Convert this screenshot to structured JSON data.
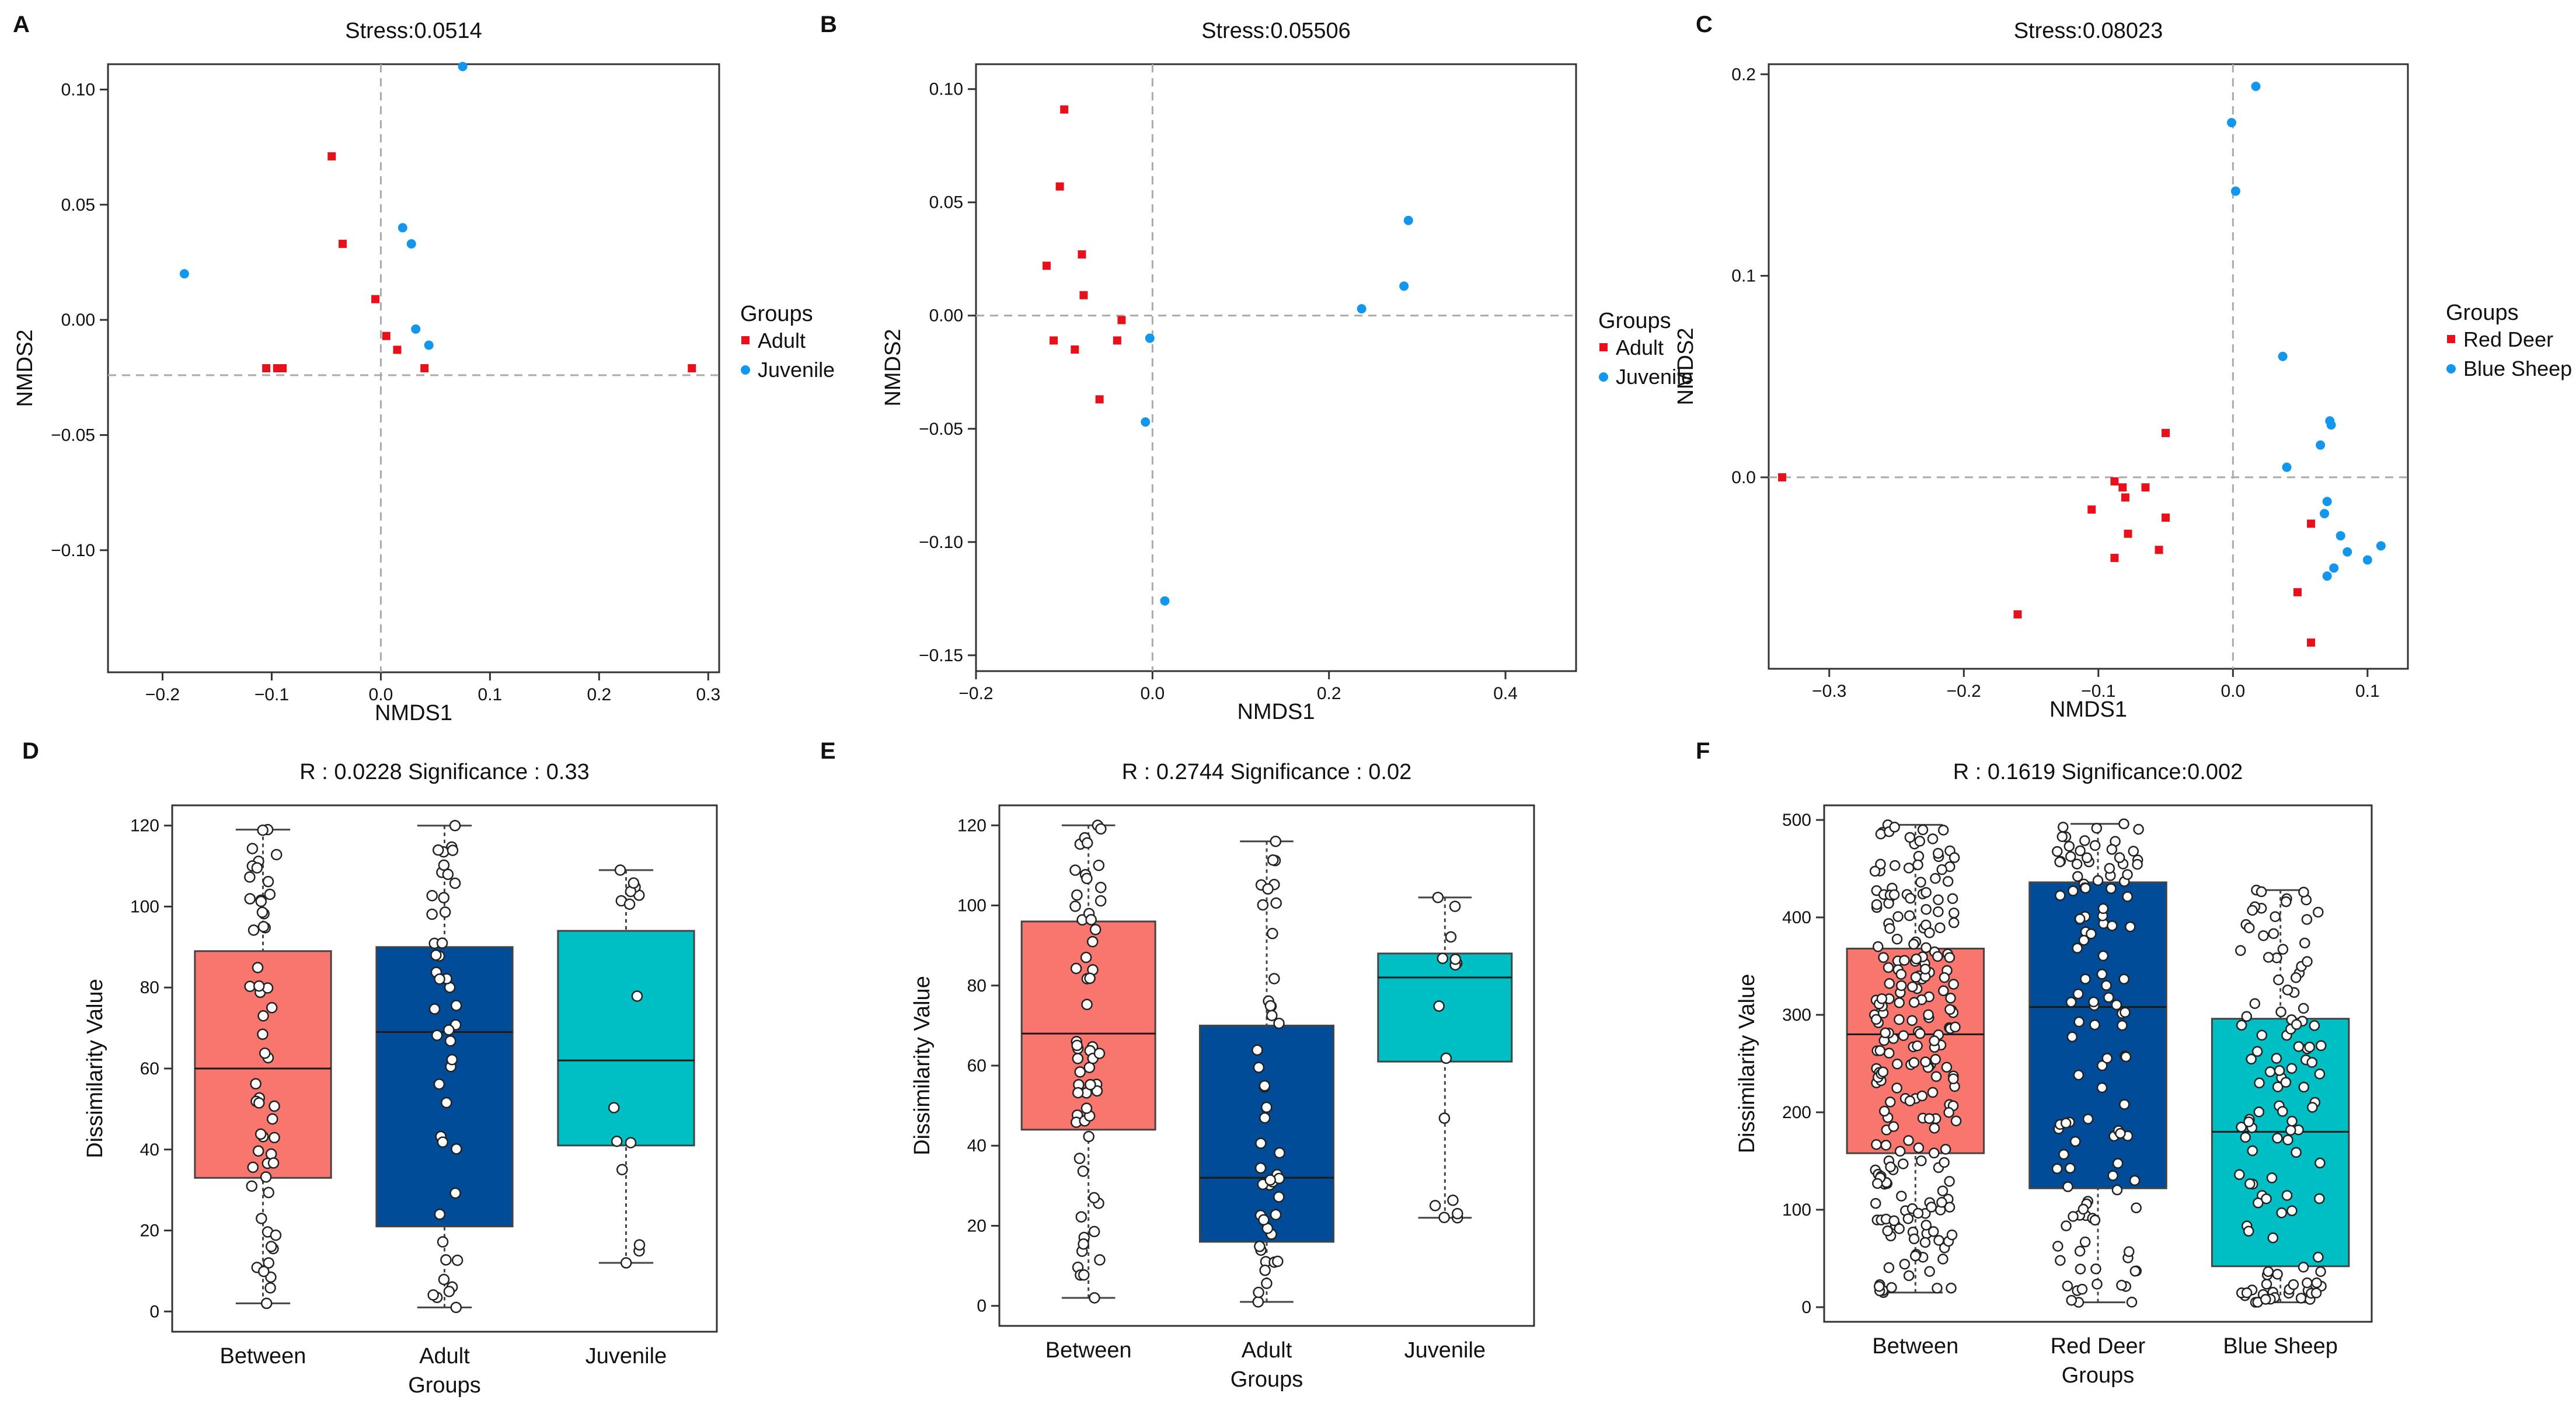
{
  "colors": {
    "red_point": "#e8101a",
    "blue_point": "#1296ee",
    "box_between": "#f8766d",
    "box_group2": "#004c99",
    "box_group3": "#00bfc4"
  },
  "chart_data": [
    {
      "panel": "A",
      "type": "scatter",
      "title": "Stress:0.0514",
      "xlabel": "NMDS1",
      "ylabel": "NMDS2",
      "xlim": [
        -0.25,
        0.31
      ],
      "ylim": [
        -0.153,
        0.111
      ],
      "xticks": [
        -0.2,
        -0.1,
        0.0,
        0.1,
        0.2,
        0.3
      ],
      "xtick_labels": [
        "−0.2",
        "−0.1",
        "0.0",
        "0.1",
        "0.2",
        "0.3"
      ],
      "yticks": [
        -0.1,
        -0.05,
        0.0,
        0.05,
        0.1
      ],
      "ytick_labels": [
        "−0.10",
        "−0.05",
        "0.00",
        "0.05",
        "0.10"
      ],
      "ref_x": 0.0,
      "ref_y": -0.024,
      "legend_title": "Groups",
      "series": [
        {
          "name": "Adult",
          "shape": "square",
          "color": "#e8101a",
          "x": [
            -0.105,
            -0.095,
            -0.09,
            -0.045,
            -0.035,
            -0.005,
            0.005,
            0.015,
            0.04,
            0.285
          ],
          "y": [
            -0.021,
            -0.021,
            -0.021,
            0.071,
            0.033,
            0.009,
            -0.007,
            -0.013,
            -0.021,
            -0.021
          ]
        },
        {
          "name": "Juvenile",
          "shape": "circle",
          "color": "#1296ee",
          "x": [
            -0.18,
            0.075,
            0.02,
            0.028,
            0.032,
            0.044
          ],
          "y": [
            0.02,
            0.11,
            0.04,
            0.033,
            -0.004,
            -0.011
          ]
        }
      ]
    },
    {
      "panel": "B",
      "type": "scatter",
      "title": "Stress:0.05506",
      "xlabel": "NMDS1",
      "ylabel": "NMDS2",
      "xlim": [
        -0.2,
        0.48
      ],
      "ylim": [
        -0.157,
        0.111
      ],
      "xticks": [
        -0.2,
        0.0,
        0.2,
        0.4
      ],
      "xtick_labels": [
        "−0.2",
        "0.0",
        "0.2",
        "0.4"
      ],
      "yticks": [
        -0.15,
        -0.1,
        -0.05,
        0.0,
        0.05,
        0.1
      ],
      "ytick_labels": [
        "−0.15",
        "−0.10",
        "−0.05",
        "0.00",
        "0.05",
        "0.10"
      ],
      "ref_x": 0.0,
      "ref_y": 0.0,
      "legend_title": "Groups",
      "series": [
        {
          "name": "Adult",
          "shape": "square",
          "color": "#e8101a",
          "x": [
            -0.1,
            -0.105,
            -0.08,
            -0.12,
            -0.078,
            -0.112,
            -0.088,
            -0.035,
            -0.04,
            -0.06
          ],
          "y": [
            0.091,
            0.057,
            0.027,
            0.022,
            0.009,
            -0.011,
            -0.015,
            -0.002,
            -0.011,
            -0.037
          ]
        },
        {
          "name": "Juvenile",
          "shape": "circle",
          "color": "#1296ee",
          "x": [
            0.29,
            0.285,
            0.237,
            -0.003,
            -0.008,
            0.014
          ],
          "y": [
            0.042,
            0.013,
            0.003,
            -0.01,
            -0.047,
            -0.126
          ]
        }
      ]
    },
    {
      "panel": "C",
      "type": "scatter",
      "title": "Stress:0.08023",
      "xlabel": "NMDS1",
      "ylabel": "NMDS2",
      "xlim": [
        -0.345,
        0.13
      ],
      "ylim": [
        -0.095,
        0.205
      ],
      "xticks": [
        -0.3,
        -0.2,
        -0.1,
        0.0,
        0.1
      ],
      "xtick_labels": [
        "−0.3",
        "−0.2",
        "−0.1",
        "0.0",
        "0.1"
      ],
      "yticks": [
        0.0,
        0.1,
        0.2
      ],
      "ytick_labels": [
        "0.0",
        "0.1",
        "0.2"
      ],
      "ref_x": 0.0,
      "ref_y": 0.0,
      "legend_title": "Groups",
      "series": [
        {
          "name": "Red Deer",
          "shape": "square",
          "color": "#e8101a",
          "x": [
            -0.335,
            -0.16,
            -0.105,
            -0.088,
            -0.088,
            -0.082,
            -0.08,
            -0.078,
            -0.065,
            -0.05,
            -0.05,
            -0.055,
            0.048,
            0.058,
            0.058
          ],
          "y": [
            0.0,
            -0.068,
            -0.016,
            -0.002,
            -0.04,
            -0.005,
            -0.01,
            -0.028,
            -0.005,
            0.022,
            -0.02,
            -0.036,
            -0.057,
            -0.023,
            -0.082
          ]
        },
        {
          "name": "Blue Sheep",
          "shape": "circle",
          "color": "#1296ee",
          "x": [
            0.017,
            -0.001,
            0.002,
            0.037,
            0.072,
            0.073,
            0.065,
            0.04,
            0.07,
            0.068,
            0.08,
            0.11,
            0.1,
            0.075,
            0.085,
            0.07
          ],
          "y": [
            0.194,
            0.176,
            0.142,
            0.06,
            0.028,
            0.026,
            0.016,
            0.005,
            -0.012,
            -0.018,
            -0.029,
            -0.034,
            -0.041,
            -0.045,
            -0.037,
            -0.049
          ]
        }
      ]
    },
    {
      "panel": "D",
      "type": "box",
      "title": "R : 0.0228  Significance : 0.33",
      "xlabel": "Groups",
      "ylabel": "Dissimilarity Value",
      "ylim": [
        -5,
        125
      ],
      "yticks": [
        0,
        20,
        40,
        60,
        80,
        100,
        120
      ],
      "ytick_labels": [
        "0",
        "20",
        "40",
        "60",
        "80",
        "100",
        "120"
      ],
      "categories": [
        "Between",
        "Adult",
        "Juvenile"
      ],
      "boxes": [
        {
          "name": "Between",
          "color": "#f8766d",
          "min": 2,
          "q1": 33,
          "median": 60,
          "q3": 89,
          "max": 119,
          "n": 56
        },
        {
          "name": "Adult",
          "color": "#004c99",
          "min": 1,
          "q1": 21,
          "median": 69,
          "q3": 90,
          "max": 120,
          "n": 45
        },
        {
          "name": "Juvenile",
          "color": "#00bfc4",
          "min": 12,
          "q1": 41,
          "median": 62,
          "q3": 94,
          "max": 109,
          "n": 15
        }
      ]
    },
    {
      "panel": "E",
      "type": "box",
      "title": "R : 0.2744  Significance : 0.02",
      "xlabel": "Groups",
      "ylabel": "Dissimilarity Value",
      "ylim": [
        -5,
        125
      ],
      "yticks": [
        0,
        20,
        40,
        60,
        80,
        100,
        120
      ],
      "ytick_labels": [
        "0",
        "20",
        "40",
        "60",
        "80",
        "100",
        "120"
      ],
      "categories": [
        "Between",
        "Adult",
        "Juvenile"
      ],
      "boxes": [
        {
          "name": "Between",
          "color": "#f8766d",
          "min": 2,
          "q1": 44,
          "median": 68,
          "q3": 96,
          "max": 120,
          "n": 60
        },
        {
          "name": "Adult",
          "color": "#004c99",
          "min": 1,
          "q1": 16,
          "median": 32,
          "q3": 70,
          "max": 116,
          "n": 45
        },
        {
          "name": "Juvenile",
          "color": "#00bfc4",
          "min": 22,
          "q1": 61,
          "median": 82,
          "q3": 88,
          "max": 102,
          "n": 15
        }
      ]
    },
    {
      "panel": "F",
      "type": "box",
      "title": "R : 0.1619  Significance:0.002",
      "xlabel": "Groups",
      "ylabel": "Dissimilarity Value",
      "ylim": [
        -15,
        515
      ],
      "yticks": [
        0,
        100,
        200,
        300,
        400,
        500
      ],
      "ytick_labels": [
        "0",
        "100",
        "200",
        "300",
        "400",
        "500"
      ],
      "categories": [
        "Between",
        "Red Deer",
        "Blue Sheep"
      ],
      "boxes": [
        {
          "name": "Between",
          "color": "#f8766d",
          "min": 15,
          "q1": 158,
          "median": 280,
          "q3": 368,
          "max": 495,
          "n": 240
        },
        {
          "name": "Red Deer",
          "color": "#004c99",
          "min": 5,
          "q1": 122,
          "median": 308,
          "q3": 436,
          "max": 496,
          "n": 120
        },
        {
          "name": "Blue Sheep",
          "color": "#00bfc4",
          "min": 5,
          "q1": 42,
          "median": 180,
          "q3": 296,
          "max": 428,
          "n": 120
        }
      ]
    }
  ]
}
